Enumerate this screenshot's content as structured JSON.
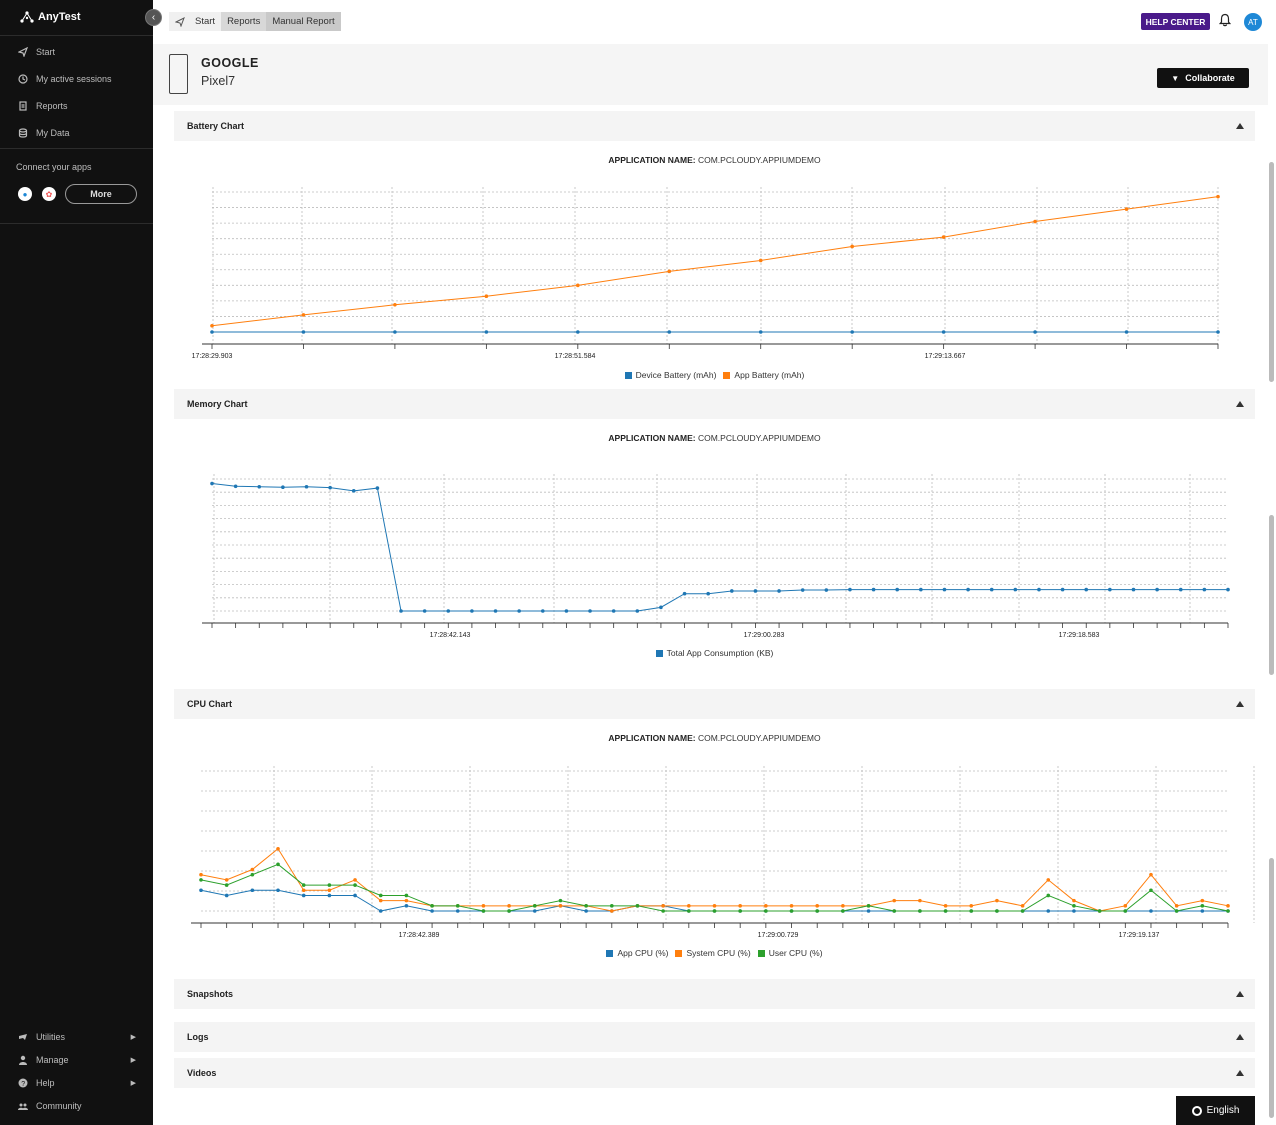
{
  "app": {
    "name": "AnyTest"
  },
  "sidebar": {
    "nav": [
      {
        "label": "Start",
        "icon": "paper-plane-icon"
      },
      {
        "label": "My active sessions",
        "icon": "clock-icon"
      },
      {
        "label": "Reports",
        "icon": "report-icon"
      },
      {
        "label": "My Data",
        "icon": "database-icon"
      }
    ],
    "connect_label": "Connect your apps",
    "more_label": "More",
    "bottom": [
      {
        "label": "Utilities",
        "icon": "utilities-icon"
      },
      {
        "label": "Manage",
        "icon": "user-icon"
      },
      {
        "label": "Help",
        "icon": "help-icon"
      },
      {
        "label": "Community",
        "icon": "community-icon"
      }
    ]
  },
  "topbar": {
    "crumbs": [
      "Start",
      "Reports",
      "Manual Report"
    ],
    "help_label": "HELP CENTER",
    "avatar": "AT"
  },
  "device": {
    "brand": "GOOGLE",
    "model": "Pixel7",
    "collaborate_label": "Collaborate"
  },
  "sections": {
    "battery": "Battery Chart",
    "memory": "Memory Chart",
    "cpu": "CPU Chart",
    "snapshots": "Snapshots",
    "logs": "Logs",
    "videos": "Videos"
  },
  "app_name": {
    "label": "APPLICATION NAME:",
    "value": "COM.PCLOUDY.APPIUMDEMO"
  },
  "footer": {
    "language": "English"
  },
  "colors": {
    "blue": "#1f77b4",
    "orange": "#ff7f0e",
    "green": "#2ca02c",
    "help": "#4a1a8a"
  },
  "chart_data": [
    {
      "id": "battery",
      "type": "line",
      "tick_labels": [
        "17:28:29.903",
        "17:28:51.584",
        "17:29:13.667"
      ],
      "series": [
        {
          "name": "Device Battery (mAh)",
          "color": "#1f77b4",
          "values": [
            0,
            0,
            0,
            0,
            0,
            0,
            0,
            0,
            0,
            0,
            0,
            0
          ]
        },
        {
          "name": "App Battery (mAh)",
          "color": "#ff7f0e",
          "values": [
            0.4,
            1.1,
            1.75,
            2.3,
            3.0,
            3.9,
            4.6,
            5.5,
            6.1,
            7.1,
            7.9,
            8.7
          ]
        }
      ],
      "ylim": [
        0,
        9
      ]
    },
    {
      "id": "memory",
      "type": "line",
      "tick_labels": [
        "17:28:42.143",
        "17:29:00.283",
        "17:29:18.583"
      ],
      "series": [
        {
          "name": "Total App Consumption (KB)",
          "color": "#1f77b4",
          "values": [
            140,
            137,
            136.5,
            136,
            136.5,
            135.5,
            132,
            135,
            0,
            0,
            0,
            0,
            0,
            0,
            0,
            0,
            0,
            0,
            0,
            4,
            19,
            19,
            22,
            22,
            22,
            23,
            23,
            23.5,
            23.5,
            23.5,
            23.5,
            23.5,
            23.5,
            23.5,
            23.5,
            23.5,
            23.5,
            23.5,
            23.5,
            23.5,
            23.5,
            23.5,
            23.5,
            23.5
          ]
        }
      ],
      "ylim": [
        0,
        145
      ]
    },
    {
      "id": "cpu",
      "type": "line",
      "tick_labels": [
        "17:28:42.389",
        "17:29:00.729",
        "17:29:19.137"
      ],
      "series": [
        {
          "name": "App CPU (%)",
          "color": "#1f77b4",
          "values": [
            4,
            3,
            4,
            4,
            3,
            3,
            3,
            0,
            1,
            0,
            0,
            0,
            0,
            0,
            1,
            0,
            0,
            1,
            1,
            0,
            0,
            0,
            0,
            0,
            0,
            0,
            0,
            0,
            0,
            0,
            0,
            0,
            0,
            0,
            0,
            0,
            0,
            0,
            0,
            0,
            0
          ]
        },
        {
          "name": "System CPU (%)",
          "color": "#ff7f0e",
          "values": [
            7,
            6,
            8,
            12,
            4,
            4,
            6,
            2,
            2,
            1,
            1,
            1,
            1,
            1,
            1,
            1,
            0,
            1,
            1,
            1,
            1,
            1,
            1,
            1,
            1,
            1,
            1,
            2,
            2,
            1,
            1,
            2,
            1,
            6,
            2,
            0,
            1,
            7,
            1,
            2,
            1
          ]
        },
        {
          "name": "User CPU (%)",
          "color": "#2ca02c",
          "values": [
            6,
            5,
            7,
            9,
            5,
            5,
            5,
            3,
            3,
            1,
            1,
            0,
            0,
            1,
            2,
            1,
            1,
            1,
            0,
            0,
            0,
            0,
            0,
            0,
            0,
            0,
            1,
            0,
            0,
            0,
            0,
            0,
            0,
            3,
            1,
            0,
            0,
            4,
            0,
            1,
            0
          ]
        }
      ],
      "ylim": [
        0,
        27
      ]
    }
  ]
}
